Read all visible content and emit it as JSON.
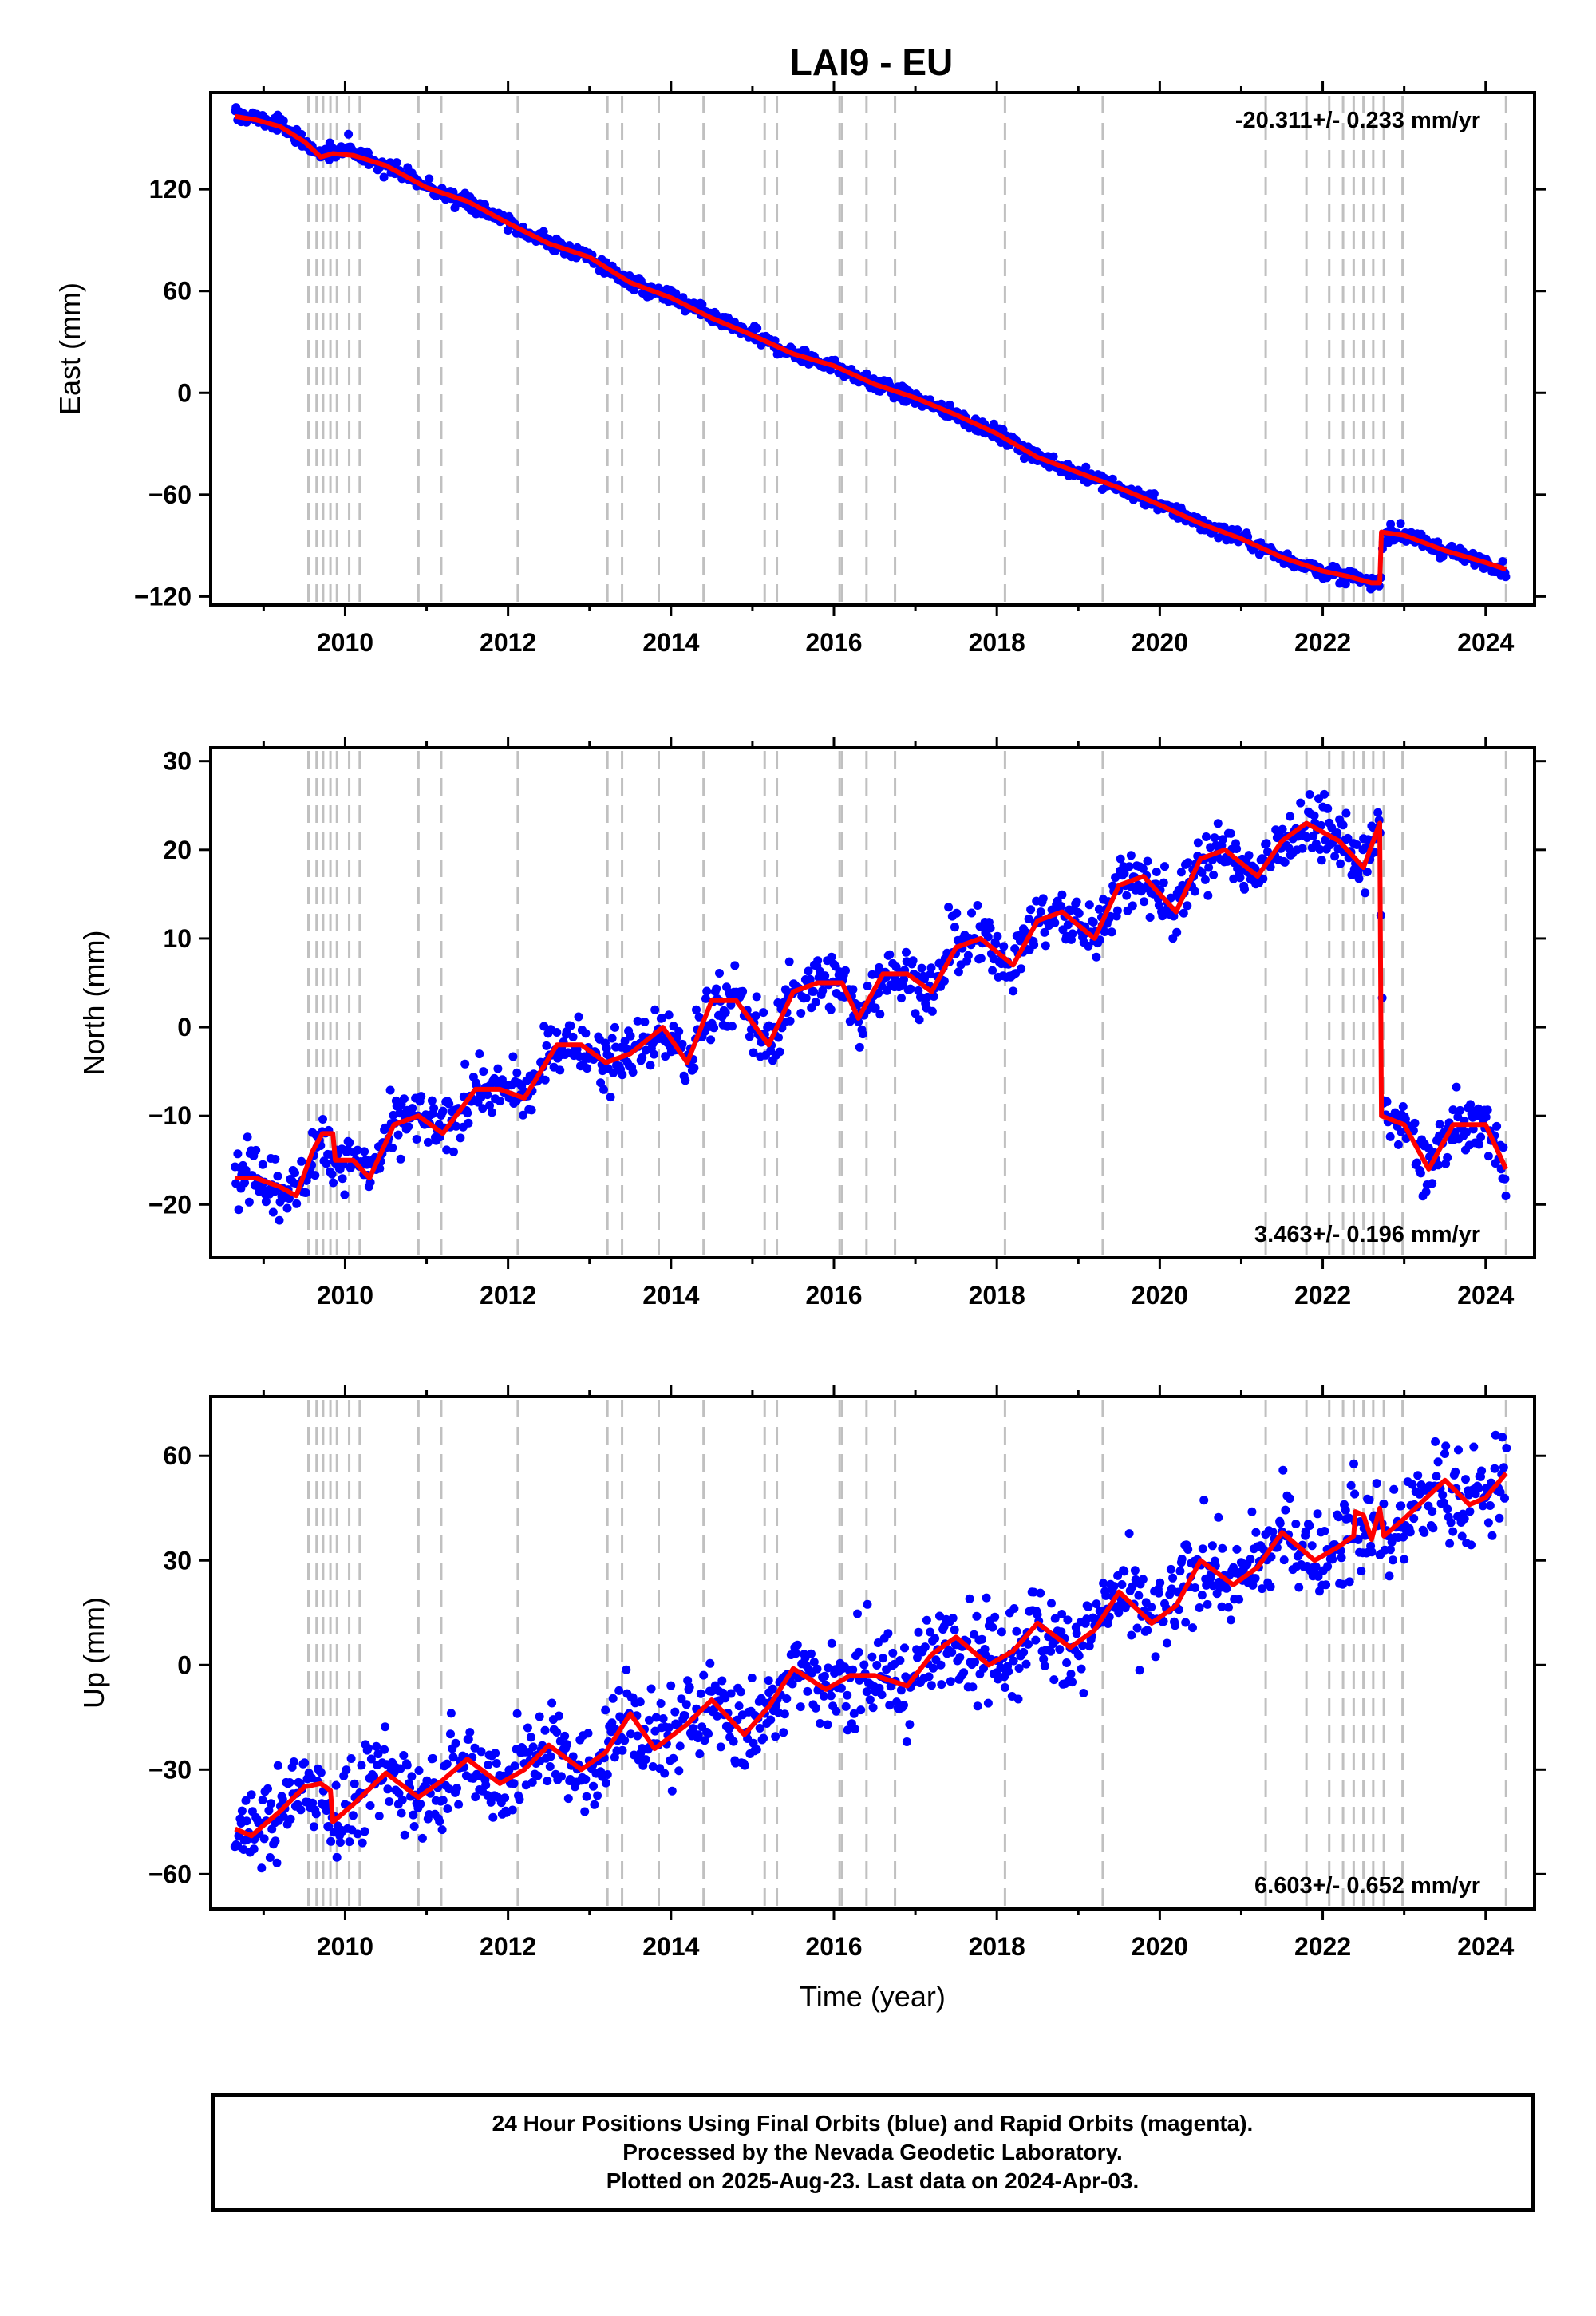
{
  "title": "LAI9 - EU",
  "caption": {
    "line1": "24 Hour Positions Using Final Orbits (blue) and Rapid Orbits (magenta).",
    "line2": "Processed by the Nevada Geodetic Laboratory.",
    "line3": "Plotted on 2025-Aug-23. Last data on 2024-Apr-03."
  },
  "colors": {
    "points": "#0000ff",
    "model": "#ff0000",
    "events": "#c0c0c0",
    "frame": "#000000"
  },
  "chart_data": [
    {
      "type": "scatter",
      "panel": "east",
      "ylabel": "East (mm)",
      "xlabel": "",
      "xlim": [
        2008.35,
        2024.6
      ],
      "ylim": [
        -125,
        177
      ],
      "xticks": [
        2010,
        2012,
        2014,
        2016,
        2018,
        2020,
        2022,
        2024
      ],
      "yticks": [
        -120,
        -60,
        0,
        60,
        120
      ],
      "rate": "-20.311+/- 0.233 mm/yr",
      "rate_position": "top-right",
      "grid": false,
      "series": [
        {
          "style": "points",
          "x": [
            2008.65,
            2008.9,
            2009.2,
            2009.5,
            2009.7,
            2009.85,
            2010.1,
            2010.5,
            2011.0,
            2011.5,
            2012.0,
            2012.5,
            2013.0,
            2013.5,
            2014.0,
            2014.5,
            2015.0,
            2015.5,
            2016.0,
            2016.5,
            2017.0,
            2017.5,
            2018.0,
            2018.5,
            2019.0,
            2019.5,
            2020.0,
            2020.5,
            2021.0,
            2021.5,
            2022.0,
            2022.3,
            2022.6,
            2022.7,
            2022.75,
            2023.0,
            2023.5,
            2024.0,
            2024.25
          ],
          "y": [
            164,
            162,
            158,
            148,
            140,
            142,
            141,
            135,
            121,
            113,
            100,
            88,
            80,
            65,
            56,
            44,
            34,
            23,
            16,
            5,
            -3,
            -13,
            -24,
            -38,
            -47,
            -56,
            -66,
            -77,
            -86,
            -97,
            -105,
            -108,
            -112,
            -111,
            -83,
            -84,
            -93,
            -100,
            -105
          ]
        },
        {
          "style": "line",
          "name": "",
          "x": [
            2008.65,
            2008.9,
            2009.2,
            2009.5,
            2009.7,
            2009.85,
            2010.1,
            2010.5,
            2011.0,
            2011.5,
            2012.0,
            2012.5,
            2013.0,
            2013.5,
            2014.0,
            2014.5,
            2015.0,
            2015.5,
            2016.0,
            2016.5,
            2017.0,
            2017.5,
            2018.0,
            2018.5,
            2019.0,
            2019.5,
            2020.0,
            2020.5,
            2021.0,
            2021.5,
            2022.0,
            2022.3,
            2022.6,
            2022.7,
            2022.72,
            2023.0,
            2023.5,
            2024.0,
            2024.25
          ],
          "y": [
            163,
            161,
            157,
            148,
            139,
            141,
            140,
            134,
            121,
            113,
            100,
            88,
            80,
            65,
            56,
            44,
            34,
            23,
            16,
            5,
            -3,
            -13,
            -24,
            -38,
            -47,
            -56,
            -66,
            -77,
            -86,
            -97,
            -105,
            -108,
            -112,
            -112,
            -82,
            -84,
            -93,
            -100,
            -104
          ]
        }
      ]
    },
    {
      "type": "scatter",
      "panel": "north",
      "ylabel": "North (mm)",
      "xlabel": "",
      "xlim": [
        2008.35,
        2024.6
      ],
      "ylim": [
        -26,
        31.5
      ],
      "xticks": [
        2010,
        2012,
        2014,
        2016,
        2018,
        2020,
        2022,
        2024
      ],
      "yticks": [
        -20,
        -10,
        0,
        10,
        20,
        30
      ],
      "rate": "3.463+/- 0.196 mm/yr",
      "rate_position": "bottom-right",
      "grid": false,
      "series": [
        {
          "style": "points",
          "x": [
            2008.65,
            2008.9,
            2009.2,
            2009.4,
            2009.6,
            2009.75,
            2009.85,
            2010.1,
            2010.3,
            2010.6,
            2010.9,
            2011.2,
            2011.6,
            2011.9,
            2012.2,
            2012.6,
            2012.9,
            2013.2,
            2013.5,
            2013.9,
            2014.2,
            2014.5,
            2014.8,
            2015.2,
            2015.5,
            2015.8,
            2016.1,
            2016.3,
            2016.6,
            2016.9,
            2017.2,
            2017.5,
            2017.8,
            2018.2,
            2018.5,
            2018.8,
            2019.2,
            2019.5,
            2019.8,
            2020.2,
            2020.5,
            2020.8,
            2021.2,
            2021.5,
            2021.8,
            2022.2,
            2022.5,
            2022.7,
            2022.75,
            2023.0,
            2023.3,
            2023.6,
            2024.0,
            2024.25
          ],
          "y": [
            -17,
            -17,
            -18,
            -19,
            -14,
            -12,
            -15,
            -15,
            -17,
            -11,
            -10,
            -12,
            -7,
            -7,
            -8,
            -2,
            -2,
            -4,
            -3,
            0,
            -4,
            3,
            3,
            -2,
            4,
            5,
            5,
            1,
            6,
            6,
            4,
            9,
            10,
            7,
            12,
            13,
            10,
            16,
            17,
            13,
            19,
            20,
            17,
            21,
            23,
            21,
            18,
            23,
            -10,
            -11,
            -16,
            -11,
            -11,
            -16
          ]
        },
        {
          "style": "line",
          "name": "",
          "x": [
            2008.65,
            2008.9,
            2009.2,
            2009.4,
            2009.6,
            2009.72,
            2009.85,
            2009.88,
            2010.1,
            2010.3,
            2010.6,
            2010.9,
            2011.2,
            2011.6,
            2011.9,
            2012.2,
            2012.6,
            2012.9,
            2013.2,
            2013.5,
            2013.9,
            2014.2,
            2014.5,
            2014.8,
            2015.2,
            2015.5,
            2015.8,
            2016.1,
            2016.3,
            2016.6,
            2016.9,
            2017.2,
            2017.5,
            2017.8,
            2018.2,
            2018.5,
            2018.8,
            2019.2,
            2019.5,
            2019.8,
            2020.2,
            2020.5,
            2020.8,
            2021.2,
            2021.5,
            2021.8,
            2022.2,
            2022.5,
            2022.7,
            2022.72,
            2023.0,
            2023.3,
            2023.6,
            2024.0,
            2024.25
          ],
          "y": [
            -17,
            -17,
            -18,
            -19,
            -14,
            -12,
            -12,
            -15,
            -15,
            -17,
            -11,
            -10,
            -12,
            -7,
            -7,
            -8,
            -2,
            -2,
            -4,
            -3,
            0,
            -4,
            3,
            3,
            -2,
            4,
            5,
            5,
            1,
            6,
            6,
            4,
            9,
            10,
            7,
            12,
            13,
            10,
            16,
            17,
            13,
            19,
            20,
            17,
            21,
            23,
            21,
            18,
            23,
            -10,
            -11,
            -16,
            -11,
            -11,
            -16
          ]
        }
      ]
    },
    {
      "type": "scatter",
      "panel": "up",
      "ylabel": "Up (mm)",
      "xlabel": "Time (year)",
      "xlim": [
        2008.35,
        2024.6
      ],
      "ylim": [
        -70,
        77
      ],
      "xticks": [
        2010,
        2012,
        2014,
        2016,
        2018,
        2020,
        2022,
        2024
      ],
      "yticks": [
        -60,
        -30,
        0,
        30,
        60
      ],
      "rate": "6.603+/- 0.652 mm/yr",
      "rate_position": "bottom-right",
      "grid": false,
      "series": [
        {
          "style": "points",
          "x": [
            2008.65,
            2008.85,
            2009.2,
            2009.5,
            2009.7,
            2009.85,
            2010.1,
            2010.5,
            2010.9,
            2011.2,
            2011.5,
            2011.9,
            2012.2,
            2012.5,
            2012.9,
            2013.2,
            2013.5,
            2013.8,
            2014.2,
            2014.5,
            2014.9,
            2015.2,
            2015.5,
            2015.9,
            2016.2,
            2016.5,
            2016.9,
            2017.2,
            2017.5,
            2017.9,
            2018.2,
            2018.5,
            2018.9,
            2019.2,
            2019.5,
            2019.9,
            2020.2,
            2020.5,
            2020.9,
            2021.2,
            2021.5,
            2021.9,
            2022.2,
            2022.4,
            2022.5,
            2022.6,
            2022.75,
            2023.0,
            2023.5,
            2023.8,
            2024.0,
            2024.25
          ],
          "y": [
            -47,
            -49,
            -42,
            -35,
            -34,
            -45,
            -40,
            -31,
            -38,
            -33,
            -27,
            -34,
            -30,
            -23,
            -30,
            -25,
            -14,
            -24,
            -17,
            -10,
            -20,
            -12,
            -1,
            -7,
            -3,
            -3,
            -6,
            3,
            8,
            0,
            4,
            12,
            5,
            10,
            21,
            12,
            17,
            30,
            23,
            28,
            38,
            30,
            34,
            44,
            32,
            42,
            37,
            42,
            53,
            46,
            48,
            55
          ]
        },
        {
          "style": "line",
          "name": "",
          "x": [
            2008.65,
            2008.85,
            2009.2,
            2009.5,
            2009.7,
            2009.82,
            2009.85,
            2010.1,
            2010.5,
            2010.9,
            2011.2,
            2011.5,
            2011.9,
            2012.2,
            2012.5,
            2012.9,
            2013.2,
            2013.5,
            2013.8,
            2014.2,
            2014.5,
            2014.9,
            2015.2,
            2015.5,
            2015.9,
            2016.2,
            2016.5,
            2016.9,
            2017.2,
            2017.5,
            2017.9,
            2018.2,
            2018.5,
            2018.9,
            2019.2,
            2019.5,
            2019.9,
            2020.2,
            2020.5,
            2020.9,
            2021.2,
            2021.5,
            2021.9,
            2022.2,
            2022.38,
            2022.4,
            2022.5,
            2022.6,
            2022.7,
            2022.75,
            2023.0,
            2023.5,
            2023.8,
            2024.0,
            2024.25
          ],
          "y": [
            -47,
            -49,
            -42,
            -35,
            -34,
            -36,
            -45,
            -40,
            -31,
            -38,
            -33,
            -27,
            -34,
            -30,
            -23,
            -30,
            -25,
            -14,
            -24,
            -17,
            -10,
            -20,
            -12,
            -1,
            -7,
            -3,
            -3,
            -6,
            3,
            8,
            0,
            4,
            12,
            5,
            10,
            21,
            12,
            17,
            30,
            23,
            28,
            38,
            30,
            34,
            37,
            44,
            43,
            36,
            45,
            37,
            42,
            53,
            46,
            48,
            55
          ]
        }
      ]
    }
  ],
  "events": [
    2009.55,
    2009.65,
    2009.73,
    2009.82,
    2009.9,
    2010.05,
    2010.18,
    2010.9,
    2011.18,
    2012.12,
    2013.22,
    2013.4,
    2013.85,
    2014.4,
    2015.15,
    2015.3,
    2016.07,
    2016.1,
    2016.4,
    2016.75,
    2018.1,
    2019.3,
    2021.3,
    2021.8,
    2022.08,
    2022.25,
    2022.38,
    2022.5,
    2022.62,
    2022.75,
    2022.98,
    2024.25
  ]
}
